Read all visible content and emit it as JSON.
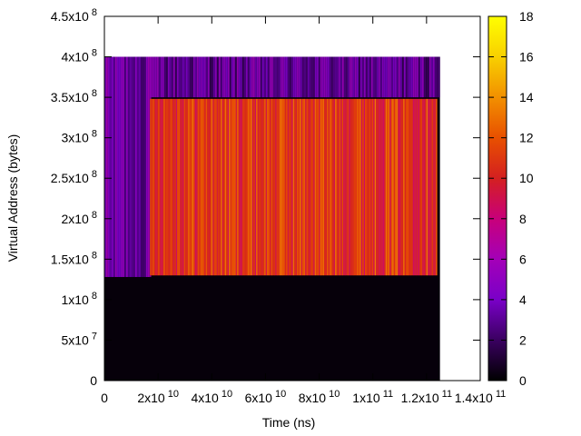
{
  "chart_data": {
    "type": "heatmap",
    "title": "",
    "xlabel": "Time (ns)",
    "ylabel": "Virtual Address (bytes)",
    "xlim": [
      0,
      140000000000
    ],
    "ylim": [
      0,
      450000000
    ],
    "grid": false,
    "x_ticks": [
      {
        "value": 0,
        "mantissa": "0",
        "exp": ""
      },
      {
        "value": 20000000000,
        "mantissa": "2x10",
        "exp": "10"
      },
      {
        "value": 40000000000,
        "mantissa": "4x10",
        "exp": "10"
      },
      {
        "value": 60000000000,
        "mantissa": "6x10",
        "exp": "10"
      },
      {
        "value": 80000000000,
        "mantissa": "8x10",
        "exp": "10"
      },
      {
        "value": 100000000000,
        "mantissa": "1x10",
        "exp": "11"
      },
      {
        "value": 120000000000,
        "mantissa": "1.2x10",
        "exp": "11"
      },
      {
        "value": 140000000000,
        "mantissa": "1.4x10",
        "exp": "11"
      }
    ],
    "y_ticks": [
      {
        "value": 0,
        "mantissa": "0",
        "exp": ""
      },
      {
        "value": 50000000,
        "mantissa": "5x10",
        "exp": "7"
      },
      {
        "value": 100000000,
        "mantissa": "1x10",
        "exp": "8"
      },
      {
        "value": 150000000,
        "mantissa": "1.5x10",
        "exp": "8"
      },
      {
        "value": 200000000,
        "mantissa": "2x10",
        "exp": "8"
      },
      {
        "value": 250000000,
        "mantissa": "2.5x10",
        "exp": "8"
      },
      {
        "value": 300000000,
        "mantissa": "3x10",
        "exp": "8"
      },
      {
        "value": 350000000,
        "mantissa": "3.5x10",
        "exp": "8"
      },
      {
        "value": 400000000,
        "mantissa": "4x10",
        "exp": "8"
      },
      {
        "value": 450000000,
        "mantissa": "4.5x10",
        "exp": "8"
      }
    ],
    "regions": [
      {
        "name": "background",
        "x0": 0,
        "x1": 125000000000,
        "y0": 0,
        "y1": 400000000,
        "value": 0.2
      },
      {
        "name": "upper-band",
        "x0": 0,
        "x1": 125000000000,
        "y0": 350000000,
        "y1": 400000000,
        "value": 2.5
      },
      {
        "name": "left-band",
        "x0": 0,
        "x1": 17000000000,
        "y0": 128000000,
        "y1": 400000000,
        "value": 3
      },
      {
        "name": "dense-block",
        "x0": 17000000000,
        "x1": 124000000000,
        "y0": 130000000,
        "y1": 348000000,
        "value": 11
      }
    ],
    "colorbar": {
      "min": 0,
      "max": 18,
      "ticks": [
        "0",
        "2",
        "4",
        "6",
        "8",
        "10",
        "12",
        "14",
        "16",
        "18"
      ],
      "palette": [
        "#000000",
        "#3a0060",
        "#7a00c8",
        "#a400b8",
        "#c8007a",
        "#d42020",
        "#e85000",
        "#f29000",
        "#f8d000",
        "#ffff00"
      ]
    }
  }
}
